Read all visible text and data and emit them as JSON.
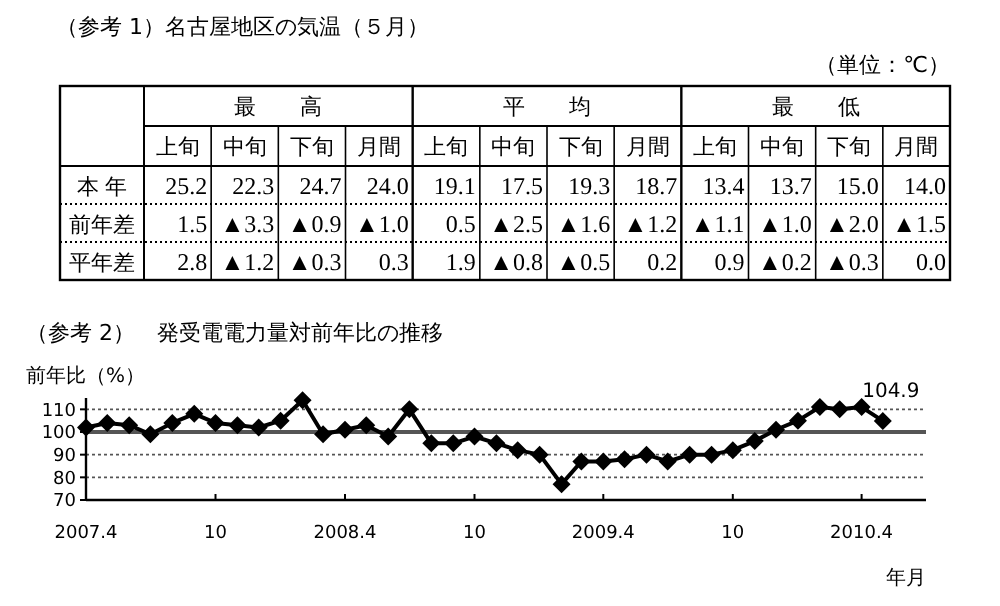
{
  "chart_data": [
    {
      "type": "other",
      "title": "（参考 1）名古屋地区の気温（５月）",
      "annotations": [
        "（単位：℃）",
        "最　　高",
        "平　　均",
        "最　　低"
      ],
      "categories": [
        "上旬",
        "中旬",
        "下旬",
        "月間",
        "上旬",
        "中旬",
        "下旬",
        "月間",
        "上旬",
        "中旬",
        "下旬",
        "月間"
      ],
      "y_categories": [
        "本 年",
        "前年差",
        "平年差"
      ],
      "cell_labels": [
        [
          "25.2",
          "22.3",
          "24.7",
          "24.0",
          "19.1",
          "17.5",
          "19.3",
          "18.7",
          "13.4",
          "13.7",
          "15.0",
          "14.0"
        ],
        [
          "1.5",
          "▲3.3",
          "▲0.9",
          "▲1.0",
          "0.5",
          "▲2.5",
          "▲1.6",
          "▲1.2",
          "▲1.1",
          "▲1.0",
          "▲2.0",
          "▲1.5"
        ],
        [
          "2.8",
          "▲1.2",
          "▲0.3",
          "0.3",
          "1.9",
          "▲0.8",
          "▲0.5",
          "0.2",
          "0.9",
          "▲0.2",
          "▲0.3",
          "0.0"
        ]
      ]
    },
    {
      "type": "line",
      "title": "（参考 2）　発受電電力量対前年比の推移",
      "ylabel": "前年比（%）",
      "xlabel": "年月",
      "x": [
        "2007-04",
        "2007-05",
        "2007-06",
        "2007-07",
        "2007-08",
        "2007-09",
        "2007-10",
        "2007-11",
        "2007-12",
        "2008-01",
        "2008-02",
        "2008-03",
        "2008-04",
        "2008-05",
        "2008-06",
        "2008-07",
        "2008-08",
        "2008-09",
        "2008-10",
        "2008-11",
        "2008-12",
        "2009-01",
        "2009-02",
        "2009-03",
        "2009-04",
        "2009-05",
        "2009-06",
        "2009-07",
        "2009-08",
        "2009-09",
        "2009-10",
        "2009-11",
        "2009-12",
        "2010-01",
        "2010-02",
        "2010-03",
        "2010-04",
        "2010-05"
      ],
      "series": [
        {
          "color": "#000000",
          "values": [
            102,
            104,
            103,
            99,
            104,
            108,
            104,
            103,
            102,
            105,
            114,
            99,
            101,
            103,
            98,
            110,
            95,
            95,
            98,
            95,
            92,
            90,
            77,
            87,
            87,
            88,
            90,
            87,
            90,
            90,
            92,
            96,
            101,
            105,
            111,
            110,
            111,
            104.9
          ],
          "value_labels": [
            null,
            null,
            null,
            null,
            null,
            null,
            null,
            null,
            null,
            null,
            null,
            null,
            null,
            null,
            null,
            null,
            null,
            null,
            null,
            null,
            null,
            null,
            null,
            null,
            null,
            null,
            null,
            null,
            null,
            null,
            null,
            null,
            null,
            null,
            null,
            null,
            null,
            "104.9"
          ]
        }
      ],
      "xlim": [
        "2007-04",
        "2010-07"
      ],
      "xticks": [
        {
          "value": "2007-04",
          "label": "2007.4"
        },
        {
          "value": "2007-10",
          "label": "10"
        },
        {
          "value": "2008-04",
          "label": "2008.4"
        },
        {
          "value": "2008-10",
          "label": "10"
        },
        {
          "value": "2009-04",
          "label": "2009.4"
        },
        {
          "value": "2009-10",
          "label": "10"
        },
        {
          "value": "2010-04",
          "label": "2010.4"
        }
      ],
      "ylim": [
        70,
        115
      ],
      "yticks": [
        70,
        80,
        90,
        100,
        110
      ],
      "grid": "y",
      "marker": "diamond",
      "line_style": "solid",
      "ref_lines": [
        {
          "axis": "y",
          "value": 100,
          "color": "#555555"
        }
      ]
    }
  ]
}
